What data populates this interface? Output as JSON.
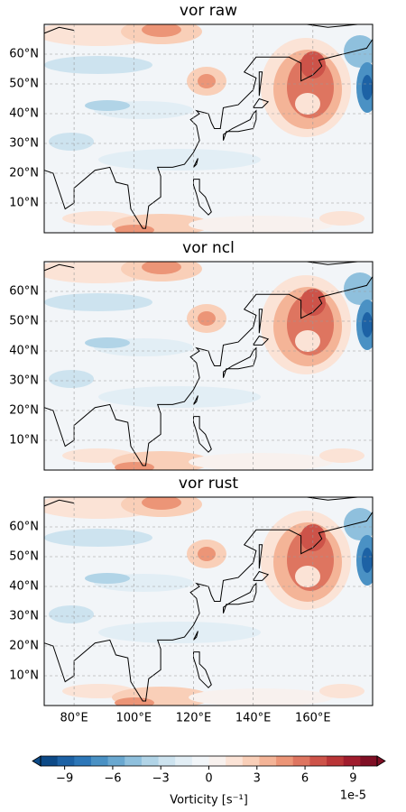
{
  "chart_data": [
    {
      "type": "contour-map",
      "title": "vor raw",
      "xlim": [
        70,
        180
      ],
      "ylim": [
        0,
        70
      ],
      "xticks": [
        80,
        100,
        120,
        140,
        160
      ],
      "yticks": [
        {
          "value": 10,
          "label": "10°N"
        },
        {
          "value": 20,
          "label": "20°N"
        },
        {
          "value": 30,
          "label": "30°N"
        },
        {
          "value": 40,
          "label": "40°N"
        },
        {
          "value": 50,
          "label": "50°N"
        },
        {
          "value": 60,
          "label": "60°N"
        }
      ],
      "grid": true
    },
    {
      "type": "contour-map",
      "title": "vor ncl",
      "xlim": [
        70,
        180
      ],
      "ylim": [
        0,
        70
      ],
      "xticks": [
        80,
        100,
        120,
        140,
        160
      ],
      "yticks": [
        {
          "value": 10,
          "label": "10°N"
        },
        {
          "value": 20,
          "label": "20°N"
        },
        {
          "value": 30,
          "label": "30°N"
        },
        {
          "value": 40,
          "label": "40°N"
        },
        {
          "value": 50,
          "label": "50°N"
        },
        {
          "value": 60,
          "label": "60°N"
        }
      ],
      "grid": true
    },
    {
      "type": "contour-map",
      "title": "vor rust",
      "xlim": [
        70,
        180
      ],
      "ylim": [
        0,
        70
      ],
      "xticks": [
        {
          "value": 80,
          "label": "80°E"
        },
        {
          "value": 100,
          "label": "100°E"
        },
        {
          "value": 120,
          "label": "120°E"
        },
        {
          "value": 140,
          "label": "140°E"
        },
        {
          "value": 160,
          "label": "160°E"
        }
      ],
      "yticks": [
        {
          "value": 10,
          "label": "10°N"
        },
        {
          "value": 20,
          "label": "20°N"
        },
        {
          "value": 30,
          "label": "30°N"
        },
        {
          "value": 40,
          "label": "40°N"
        },
        {
          "value": 50,
          "label": "50°N"
        },
        {
          "value": 60,
          "label": "60°N"
        }
      ],
      "grid": true
    }
  ],
  "colorbar": {
    "label": "Vorticity [s⁻¹]",
    "offset": "1e-5",
    "xlim": [
      -10.5,
      10.5
    ],
    "xticks": [
      {
        "value": -9,
        "label": "−9"
      },
      {
        "value": -6,
        "label": "−6"
      },
      {
        "value": -3,
        "label": "−3"
      },
      0,
      3,
      6,
      9
    ],
    "colors": [
      "#0d4a87",
      "#1d62a5",
      "#2d77b8",
      "#4a91c4",
      "#6aa8d0",
      "#8fc0dd",
      "#b1d4e7",
      "#cde3ef",
      "#e2eef5",
      "#f2f6f9",
      "#f8f1ee",
      "#fbe3d6",
      "#f9cfb8",
      "#f4b497",
      "#ec9577",
      "#de7560",
      "#cd5349",
      "#b93537",
      "#a01c2d",
      "#800f25"
    ]
  }
}
